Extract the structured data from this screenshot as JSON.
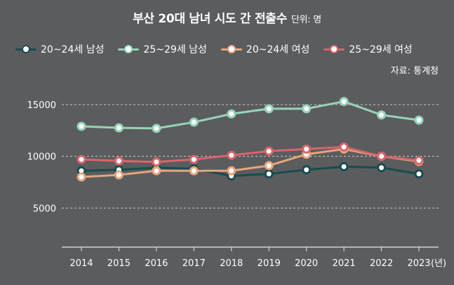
{
  "title": "부산 20대 남녀 시도 간 전출수",
  "unit": "단위: 명",
  "source": "자료: 통계청",
  "year_suffix": "(년)",
  "chart_data": {
    "type": "line",
    "title": "부산 20대 남녀 시도 간 전출수",
    "x": [
      "2014",
      "2015",
      "2016",
      "2017",
      "2018",
      "2019",
      "2020",
      "2021",
      "2022",
      "2023"
    ],
    "ylim": [
      0,
      17000
    ],
    "yticks": [
      5000,
      10000,
      15000
    ],
    "ytick_labels": [
      "5000",
      "10000",
      "15000"
    ],
    "grid": true,
    "legend_position": "top",
    "series": [
      {
        "name": "20~24세 남성",
        "color": "#174c4f",
        "values": [
          8600,
          8700,
          8900,
          8800,
          8100,
          8300,
          8700,
          9000,
          8900,
          8300
        ]
      },
      {
        "name": "25~29세 남성",
        "color": "#96d3b8",
        "values": [
          12900,
          12750,
          12700,
          13300,
          14100,
          14600,
          14600,
          15300,
          14000,
          13500
        ]
      },
      {
        "name": "20~24세 여성",
        "color": "#e6a57d",
        "values": [
          8000,
          8200,
          8600,
          8600,
          8600,
          9100,
          10200,
          10700,
          10000,
          9500
        ]
      },
      {
        "name": "25~29세 여성",
        "color": "#d9646c",
        "values": [
          9700,
          9550,
          9450,
          9700,
          10100,
          10500,
          10700,
          10900,
          10000,
          9600
        ]
      }
    ]
  }
}
